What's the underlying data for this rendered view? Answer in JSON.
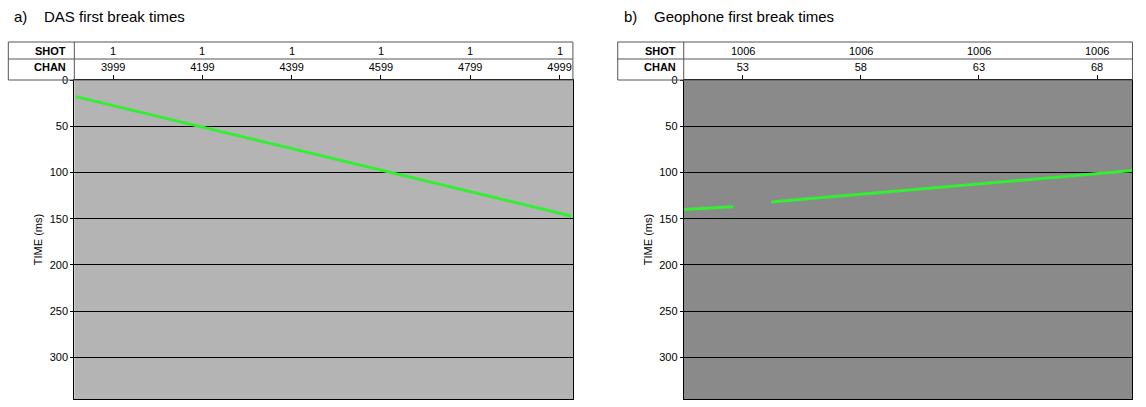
{
  "chart_data": [
    {
      "type": "line",
      "panel_label": "a)",
      "title": "DAS first break times",
      "y_label": "TIME (ms)",
      "x": [
        3915,
        5025
      ],
      "values": [
        18,
        147
      ],
      "color": "#33ee33",
      "xlim": [
        3912,
        5029
      ],
      "xticks": [
        3999,
        4199,
        4399,
        4599,
        4799,
        4999
      ],
      "ylim": [
        0,
        345
      ],
      "yticks": [
        0,
        50,
        100,
        150,
        200,
        250,
        300
      ],
      "grid": true,
      "shot_label": "SHOT",
      "shot_values": [
        1,
        1,
        1,
        1,
        1,
        1
      ],
      "chan_label": "CHAN"
    },
    {
      "type": "line",
      "panel_label": "b)",
      "title": "Geophone first break times",
      "y_label": "TIME (ms)",
      "x": [
        50.5,
        52.6,
        53.4,
        54.2,
        69.5
      ],
      "values": [
        140,
        137,
        null,
        132,
        98
      ],
      "color": "#33ee33",
      "xlim": [
        50.5,
        69.5
      ],
      "xticks": [
        53,
        58,
        63,
        68
      ],
      "ylim": [
        0,
        345
      ],
      "yticks": [
        0,
        50,
        100,
        150,
        200,
        250,
        300
      ],
      "grid": true,
      "shot_label": "SHOT",
      "shot_values": [
        1006,
        1006,
        1006,
        1006
      ],
      "chan_label": "CHAN"
    }
  ]
}
